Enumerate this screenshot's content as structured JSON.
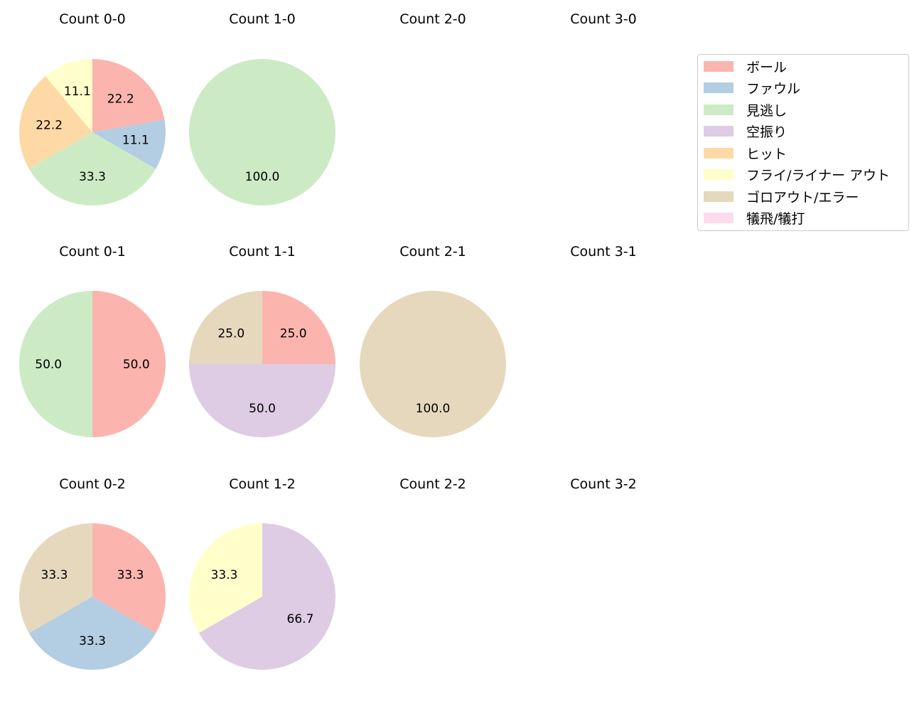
{
  "chart_data": {
    "type": "pie",
    "title": "",
    "legend": {
      "position": "upper right",
      "entries": [
        {
          "label": "ボール",
          "color": "#fbb4ae"
        },
        {
          "label": "ファウル",
          "color": "#b3cde3"
        },
        {
          "label": "見逃し",
          "color": "#ccebc5"
        },
        {
          "label": "空振り",
          "color": "#decbe4"
        },
        {
          "label": "ヒット",
          "color": "#fed9a6"
        },
        {
          "label": "フライ/ライナー アウト",
          "color": "#ffffcc"
        },
        {
          "label": "ゴロアウト/エラー",
          "color": "#e5d8bd"
        },
        {
          "label": "犠飛/犠打",
          "color": "#fddaec"
        }
      ]
    },
    "categories": [
      "ボール",
      "ファウル",
      "見逃し",
      "空振り",
      "ヒット",
      "フライ/ライナー アウト",
      "ゴロアウト/エラー",
      "犠飛/犠打"
    ],
    "pies": [
      {
        "title": "Count 0-0",
        "row": 0,
        "col": 0,
        "values": [
          22.2,
          11.1,
          33.3,
          0,
          22.2,
          11.1,
          0,
          0
        ]
      },
      {
        "title": "Count 1-0",
        "row": 0,
        "col": 1,
        "values": [
          0,
          0,
          100.0,
          0,
          0,
          0,
          0,
          0
        ]
      },
      {
        "title": "Count 2-0",
        "row": 0,
        "col": 2,
        "values": []
      },
      {
        "title": "Count 3-0",
        "row": 0,
        "col": 3,
        "values": []
      },
      {
        "title": "Count 0-1",
        "row": 1,
        "col": 0,
        "values": [
          50.0,
          0,
          50.0,
          0,
          0,
          0,
          0,
          0
        ]
      },
      {
        "title": "Count 1-1",
        "row": 1,
        "col": 1,
        "values": [
          25.0,
          0,
          0,
          50.0,
          0,
          0,
          25.0,
          0
        ]
      },
      {
        "title": "Count 2-1",
        "row": 1,
        "col": 2,
        "values": [
          0,
          0,
          0,
          0,
          0,
          0,
          100.0,
          0
        ]
      },
      {
        "title": "Count 3-1",
        "row": 1,
        "col": 3,
        "values": []
      },
      {
        "title": "Count 0-2",
        "row": 2,
        "col": 0,
        "values": [
          33.3,
          33.3,
          0,
          0,
          0,
          0,
          33.3,
          0
        ]
      },
      {
        "title": "Count 1-2",
        "row": 2,
        "col": 1,
        "values": [
          0,
          0,
          0,
          66.7,
          0,
          33.3,
          0,
          0
        ]
      },
      {
        "title": "Count 2-2",
        "row": 2,
        "col": 2,
        "values": []
      },
      {
        "title": "Count 3-2",
        "row": 2,
        "col": 3,
        "values": []
      }
    ]
  }
}
